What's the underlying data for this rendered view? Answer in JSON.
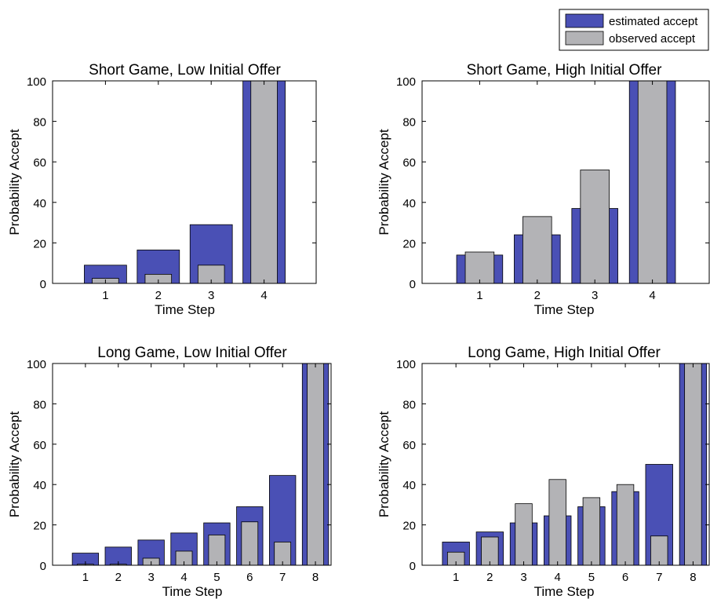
{
  "legend": {
    "items": [
      {
        "label": "estimated accept",
        "color": "#4a50b5"
      },
      {
        "label": "observed accept",
        "color": "#b3b3b6"
      }
    ],
    "placement": "top-right"
  },
  "colors": {
    "estimated": "#4a50b5",
    "observed": "#b3b3b6",
    "axis": "#000000"
  },
  "chart_data": [
    {
      "type": "bar",
      "title": "Short Game, Low Initial Offer",
      "xlabel": "Time Step",
      "ylabel": "Probability Accept",
      "categories": [
        "1",
        "2",
        "3",
        "4"
      ],
      "ylim": [
        0,
        100
      ],
      "yticks": [
        0,
        20,
        40,
        60,
        80,
        100
      ],
      "series": [
        {
          "name": "estimated accept",
          "values": [
            9,
            16.5,
            29,
            100
          ]
        },
        {
          "name": "observed accept",
          "values": [
            2.5,
            4.5,
            9,
            100
          ]
        }
      ]
    },
    {
      "type": "bar",
      "title": "Short Game, High Initial Offer",
      "xlabel": "Time Step",
      "ylabel": "Probability Accept",
      "categories": [
        "1",
        "2",
        "3",
        "4"
      ],
      "ylim": [
        0,
        100
      ],
      "yticks": [
        0,
        20,
        40,
        60,
        80,
        100
      ],
      "series": [
        {
          "name": "estimated accept",
          "values": [
            14,
            24,
            37,
            100
          ]
        },
        {
          "name": "observed accept",
          "values": [
            15.5,
            33,
            56,
            100
          ]
        }
      ]
    },
    {
      "type": "bar",
      "title": "Long Game, Low Initial Offer",
      "xlabel": "Time Step",
      "ylabel": "Probability Accept",
      "categories": [
        "1",
        "2",
        "3",
        "4",
        "5",
        "6",
        "7",
        "8"
      ],
      "ylim": [
        0,
        100
      ],
      "yticks": [
        0,
        20,
        40,
        60,
        80,
        100
      ],
      "series": [
        {
          "name": "estimated accept",
          "values": [
            6,
            9,
            12.5,
            16,
            21,
            29,
            44.5,
            100
          ]
        },
        {
          "name": "observed accept",
          "values": [
            0.5,
            0.5,
            3.5,
            7,
            15,
            21.5,
            11.5,
            100
          ]
        }
      ]
    },
    {
      "type": "bar",
      "title": "Long Game, High Initial Offer",
      "xlabel": "Time Step",
      "ylabel": "Probability Accept",
      "categories": [
        "1",
        "2",
        "3",
        "4",
        "5",
        "6",
        "7",
        "8"
      ],
      "ylim": [
        0,
        100
      ],
      "yticks": [
        0,
        20,
        40,
        60,
        80,
        100
      ],
      "series": [
        {
          "name": "estimated accept",
          "values": [
            11.5,
            16.5,
            21,
            24.5,
            29,
            36.5,
            50,
            100
          ]
        },
        {
          "name": "observed accept",
          "values": [
            6.5,
            14,
            30.5,
            42.5,
            33.5,
            40,
            14.5,
            100
          ]
        }
      ]
    }
  ]
}
